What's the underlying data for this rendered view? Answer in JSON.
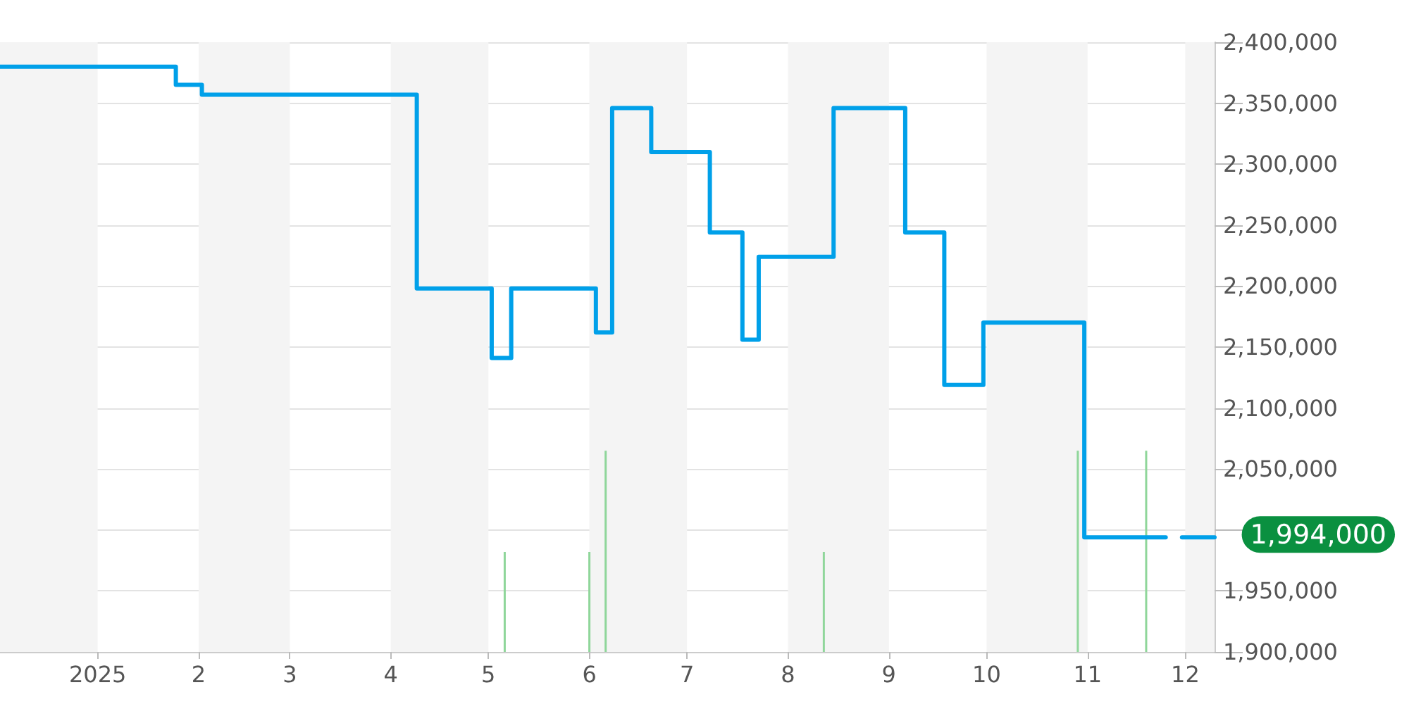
{
  "chart_data": {
    "type": "step",
    "xlim": [
      "2024-12-02",
      "2025-12-10"
    ],
    "xticks": [
      {
        "value": "2025-01-01",
        "label": "2025"
      },
      {
        "value": "2025-02-01",
        "label": "2"
      },
      {
        "value": "2025-03-01",
        "label": "3"
      },
      {
        "value": "2025-04-01",
        "label": "4"
      },
      {
        "value": "2025-05-01",
        "label": "5"
      },
      {
        "value": "2025-06-01",
        "label": "6"
      },
      {
        "value": "2025-07-01",
        "label": "7"
      },
      {
        "value": "2025-08-01",
        "label": "8"
      },
      {
        "value": "2025-09-01",
        "label": "9"
      },
      {
        "value": "2025-10-01",
        "label": "10"
      },
      {
        "value": "2025-11-01",
        "label": "11"
      },
      {
        "value": "2025-12-01",
        "label": "12"
      }
    ],
    "ylim": [
      1900000,
      2400000
    ],
    "yticks": [
      {
        "value": 1900000,
        "label": "1,900,000"
      },
      {
        "value": 1950000,
        "label": "1,950,000"
      },
      {
        "value": 2000000,
        "label": null
      },
      {
        "value": 2050000,
        "label": "2,050,000"
      },
      {
        "value": 2100000,
        "label": "2,100,000"
      },
      {
        "value": 2150000,
        "label": "2,150,000"
      },
      {
        "value": 2200000,
        "label": "2,200,000"
      },
      {
        "value": 2250000,
        "label": "2,250,000"
      },
      {
        "value": 2300000,
        "label": "2,300,000"
      },
      {
        "value": 2350000,
        "label": "2,350,000"
      },
      {
        "value": 2400000,
        "label": "2,400,000"
      }
    ],
    "grid": "y",
    "marker": "none",
    "line_style": "solid",
    "series": [
      {
        "color": "#00a0e9",
        "x": [
          "2024-12-02",
          "2025-01-25",
          "2025-02-02",
          "2025-04-09",
          "2025-05-02",
          "2025-05-08",
          "2025-06-03",
          "2025-06-08",
          "2025-06-20",
          "2025-07-08",
          "2025-07-18",
          "2025-07-23",
          "2025-08-15",
          "2025-09-06",
          "2025-09-18",
          "2025-09-30",
          "2025-10-31",
          "2025-11-21",
          "2025-11-25",
          "2025-11-30",
          "2025-12-10"
        ],
        "values": [
          2380000,
          2365000,
          2357000,
          2198000,
          2141000,
          2198000,
          2162000,
          2346000,
          2310000,
          2244000,
          2156000,
          2224000,
          2346000,
          2244000,
          2119000,
          2170000,
          1994000,
          1994000,
          null,
          1994000,
          1994000
        ]
      },
      {
        "type": "bar",
        "color": "#8fd69a",
        "x": [
          "2025-05-06",
          "2025-06-01",
          "2025-06-06",
          "2025-08-12",
          "2025-10-29",
          "2025-11-19"
        ],
        "values": [
          1982000,
          1982000,
          2065000,
          1982000,
          2065000,
          2065000
        ]
      }
    ],
    "bands": [
      {
        "axis": "x",
        "from": "2024-12-02",
        "to": "2025-01-01",
        "color": "#f4f4f4"
      },
      {
        "axis": "x",
        "from": "2025-02-01",
        "to": "2025-03-01",
        "color": "#f4f4f4"
      },
      {
        "axis": "x",
        "from": "2025-04-01",
        "to": "2025-05-01",
        "color": "#f4f4f4"
      },
      {
        "axis": "x",
        "from": "2025-06-01",
        "to": "2025-07-01",
        "color": "#f4f4f4"
      },
      {
        "axis": "x",
        "from": "2025-08-01",
        "to": "2025-09-01",
        "color": "#f4f4f4"
      },
      {
        "axis": "x",
        "from": "2025-10-01",
        "to": "2025-11-01",
        "color": "#f4f4f4"
      },
      {
        "axis": "x",
        "from": "2025-12-01",
        "to": "2025-12-10",
        "color": "#f4f4f4"
      }
    ],
    "annotations": [
      "1,994,000"
    ]
  }
}
